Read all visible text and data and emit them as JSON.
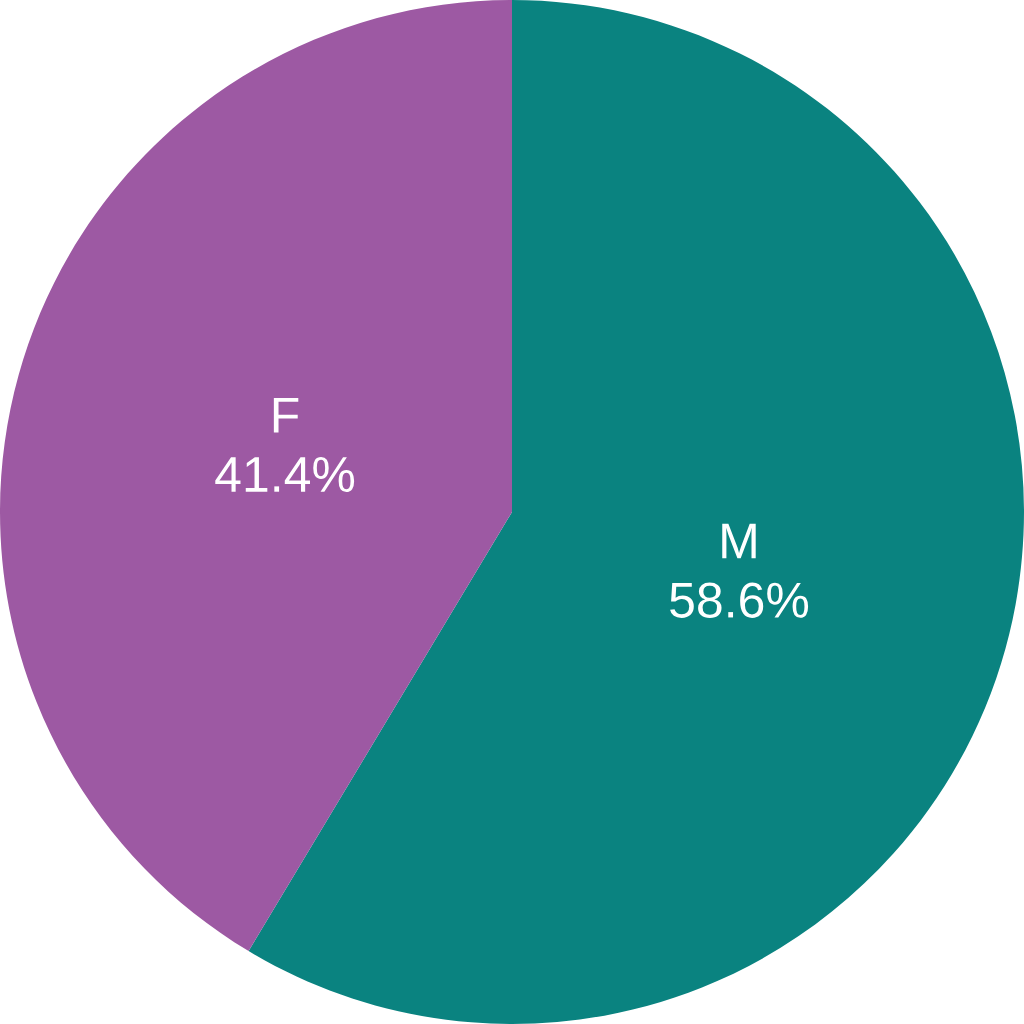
{
  "chart_data": {
    "type": "pie",
    "categories": [
      "M",
      "F"
    ],
    "values": [
      58.6,
      41.4
    ],
    "value_labels": [
      "58.6%",
      "41.4%"
    ],
    "colors": [
      "#0a8380",
      "#9d59a3"
    ],
    "legend": false
  }
}
